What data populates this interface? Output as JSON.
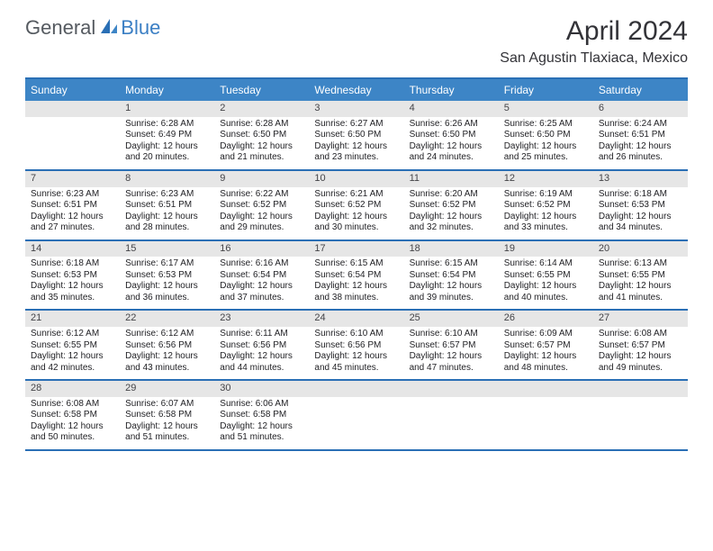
{
  "logo": {
    "text1": "General",
    "text2": "Blue"
  },
  "title": "April 2024",
  "location": "San Agustin Tlaxiaca, Mexico",
  "colors": {
    "header_bg": "#3d85c6",
    "header_text": "#ffffff",
    "border": "#2a6fb5",
    "daynum_bg": "#e6e6e6",
    "body_text": "#222226",
    "logo_general": "#555a60",
    "logo_blue": "#3b7fc4"
  },
  "day_names": [
    "Sunday",
    "Monday",
    "Tuesday",
    "Wednesday",
    "Thursday",
    "Friday",
    "Saturday"
  ],
  "weeks": [
    [
      {
        "num": "",
        "sunrise": "",
        "sunset": "",
        "day1": "",
        "day2": ""
      },
      {
        "num": "1",
        "sunrise": "Sunrise: 6:28 AM",
        "sunset": "Sunset: 6:49 PM",
        "day1": "Daylight: 12 hours",
        "day2": "and 20 minutes."
      },
      {
        "num": "2",
        "sunrise": "Sunrise: 6:28 AM",
        "sunset": "Sunset: 6:50 PM",
        "day1": "Daylight: 12 hours",
        "day2": "and 21 minutes."
      },
      {
        "num": "3",
        "sunrise": "Sunrise: 6:27 AM",
        "sunset": "Sunset: 6:50 PM",
        "day1": "Daylight: 12 hours",
        "day2": "and 23 minutes."
      },
      {
        "num": "4",
        "sunrise": "Sunrise: 6:26 AM",
        "sunset": "Sunset: 6:50 PM",
        "day1": "Daylight: 12 hours",
        "day2": "and 24 minutes."
      },
      {
        "num": "5",
        "sunrise": "Sunrise: 6:25 AM",
        "sunset": "Sunset: 6:50 PM",
        "day1": "Daylight: 12 hours",
        "day2": "and 25 minutes."
      },
      {
        "num": "6",
        "sunrise": "Sunrise: 6:24 AM",
        "sunset": "Sunset: 6:51 PM",
        "day1": "Daylight: 12 hours",
        "day2": "and 26 minutes."
      }
    ],
    [
      {
        "num": "7",
        "sunrise": "Sunrise: 6:23 AM",
        "sunset": "Sunset: 6:51 PM",
        "day1": "Daylight: 12 hours",
        "day2": "and 27 minutes."
      },
      {
        "num": "8",
        "sunrise": "Sunrise: 6:23 AM",
        "sunset": "Sunset: 6:51 PM",
        "day1": "Daylight: 12 hours",
        "day2": "and 28 minutes."
      },
      {
        "num": "9",
        "sunrise": "Sunrise: 6:22 AM",
        "sunset": "Sunset: 6:52 PM",
        "day1": "Daylight: 12 hours",
        "day2": "and 29 minutes."
      },
      {
        "num": "10",
        "sunrise": "Sunrise: 6:21 AM",
        "sunset": "Sunset: 6:52 PM",
        "day1": "Daylight: 12 hours",
        "day2": "and 30 minutes."
      },
      {
        "num": "11",
        "sunrise": "Sunrise: 6:20 AM",
        "sunset": "Sunset: 6:52 PM",
        "day1": "Daylight: 12 hours",
        "day2": "and 32 minutes."
      },
      {
        "num": "12",
        "sunrise": "Sunrise: 6:19 AM",
        "sunset": "Sunset: 6:52 PM",
        "day1": "Daylight: 12 hours",
        "day2": "and 33 minutes."
      },
      {
        "num": "13",
        "sunrise": "Sunrise: 6:18 AM",
        "sunset": "Sunset: 6:53 PM",
        "day1": "Daylight: 12 hours",
        "day2": "and 34 minutes."
      }
    ],
    [
      {
        "num": "14",
        "sunrise": "Sunrise: 6:18 AM",
        "sunset": "Sunset: 6:53 PM",
        "day1": "Daylight: 12 hours",
        "day2": "and 35 minutes."
      },
      {
        "num": "15",
        "sunrise": "Sunrise: 6:17 AM",
        "sunset": "Sunset: 6:53 PM",
        "day1": "Daylight: 12 hours",
        "day2": "and 36 minutes."
      },
      {
        "num": "16",
        "sunrise": "Sunrise: 6:16 AM",
        "sunset": "Sunset: 6:54 PM",
        "day1": "Daylight: 12 hours",
        "day2": "and 37 minutes."
      },
      {
        "num": "17",
        "sunrise": "Sunrise: 6:15 AM",
        "sunset": "Sunset: 6:54 PM",
        "day1": "Daylight: 12 hours",
        "day2": "and 38 minutes."
      },
      {
        "num": "18",
        "sunrise": "Sunrise: 6:15 AM",
        "sunset": "Sunset: 6:54 PM",
        "day1": "Daylight: 12 hours",
        "day2": "and 39 minutes."
      },
      {
        "num": "19",
        "sunrise": "Sunrise: 6:14 AM",
        "sunset": "Sunset: 6:55 PM",
        "day1": "Daylight: 12 hours",
        "day2": "and 40 minutes."
      },
      {
        "num": "20",
        "sunrise": "Sunrise: 6:13 AM",
        "sunset": "Sunset: 6:55 PM",
        "day1": "Daylight: 12 hours",
        "day2": "and 41 minutes."
      }
    ],
    [
      {
        "num": "21",
        "sunrise": "Sunrise: 6:12 AM",
        "sunset": "Sunset: 6:55 PM",
        "day1": "Daylight: 12 hours",
        "day2": "and 42 minutes."
      },
      {
        "num": "22",
        "sunrise": "Sunrise: 6:12 AM",
        "sunset": "Sunset: 6:56 PM",
        "day1": "Daylight: 12 hours",
        "day2": "and 43 minutes."
      },
      {
        "num": "23",
        "sunrise": "Sunrise: 6:11 AM",
        "sunset": "Sunset: 6:56 PM",
        "day1": "Daylight: 12 hours",
        "day2": "and 44 minutes."
      },
      {
        "num": "24",
        "sunrise": "Sunrise: 6:10 AM",
        "sunset": "Sunset: 6:56 PM",
        "day1": "Daylight: 12 hours",
        "day2": "and 45 minutes."
      },
      {
        "num": "25",
        "sunrise": "Sunrise: 6:10 AM",
        "sunset": "Sunset: 6:57 PM",
        "day1": "Daylight: 12 hours",
        "day2": "and 47 minutes."
      },
      {
        "num": "26",
        "sunrise": "Sunrise: 6:09 AM",
        "sunset": "Sunset: 6:57 PM",
        "day1": "Daylight: 12 hours",
        "day2": "and 48 minutes."
      },
      {
        "num": "27",
        "sunrise": "Sunrise: 6:08 AM",
        "sunset": "Sunset: 6:57 PM",
        "day1": "Daylight: 12 hours",
        "day2": "and 49 minutes."
      }
    ],
    [
      {
        "num": "28",
        "sunrise": "Sunrise: 6:08 AM",
        "sunset": "Sunset: 6:58 PM",
        "day1": "Daylight: 12 hours",
        "day2": "and 50 minutes."
      },
      {
        "num": "29",
        "sunrise": "Sunrise: 6:07 AM",
        "sunset": "Sunset: 6:58 PM",
        "day1": "Daylight: 12 hours",
        "day2": "and 51 minutes."
      },
      {
        "num": "30",
        "sunrise": "Sunrise: 6:06 AM",
        "sunset": "Sunset: 6:58 PM",
        "day1": "Daylight: 12 hours",
        "day2": "and 51 minutes."
      },
      {
        "num": "",
        "sunrise": "",
        "sunset": "",
        "day1": "",
        "day2": ""
      },
      {
        "num": "",
        "sunrise": "",
        "sunset": "",
        "day1": "",
        "day2": ""
      },
      {
        "num": "",
        "sunrise": "",
        "sunset": "",
        "day1": "",
        "day2": ""
      },
      {
        "num": "",
        "sunrise": "",
        "sunset": "",
        "day1": "",
        "day2": ""
      }
    ]
  ]
}
